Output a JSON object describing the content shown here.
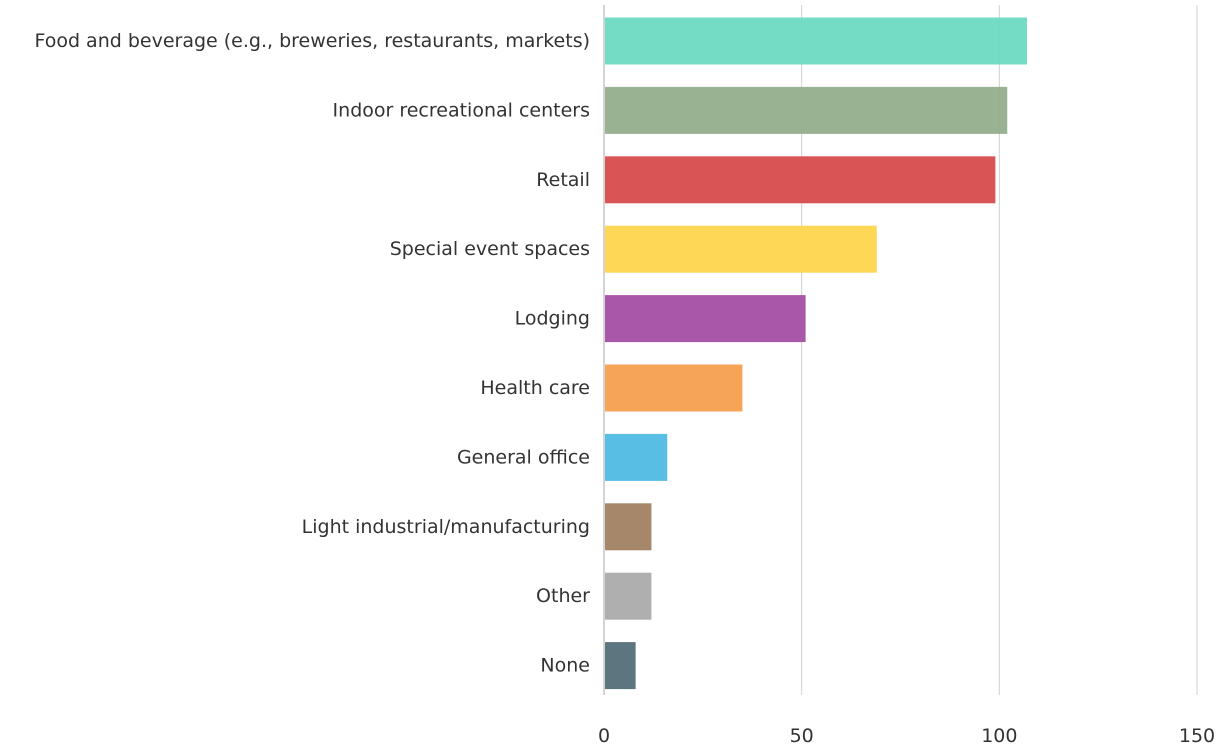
{
  "chart_data": {
    "type": "bar",
    "orientation": "horizontal",
    "categories": [
      "Food and beverage (e.g., breweries, restaurants, markets)",
      "Indoor recreational centers",
      "Retail",
      "Special event spaces",
      "Lodging",
      "Health care",
      "General office",
      "Light industrial/manufacturing",
      "Other",
      "None"
    ],
    "values": [
      107,
      102,
      99,
      69,
      51,
      35,
      16,
      12,
      12,
      8
    ],
    "colors": [
      "#6dd9c1",
      "#93ae8c",
      "#d64b4c",
      "#ffd54e",
      "#a44fa4",
      "#f6a04f",
      "#4fbae3",
      "#a18162",
      "#ababab",
      "#536e78"
    ],
    "xlim": [
      0,
      150
    ],
    "xticks": [
      "0",
      "50",
      "100",
      "150"
    ],
    "grid": "vertical",
    "legend": "none",
    "title": "",
    "xlabel": "",
    "ylabel": ""
  }
}
